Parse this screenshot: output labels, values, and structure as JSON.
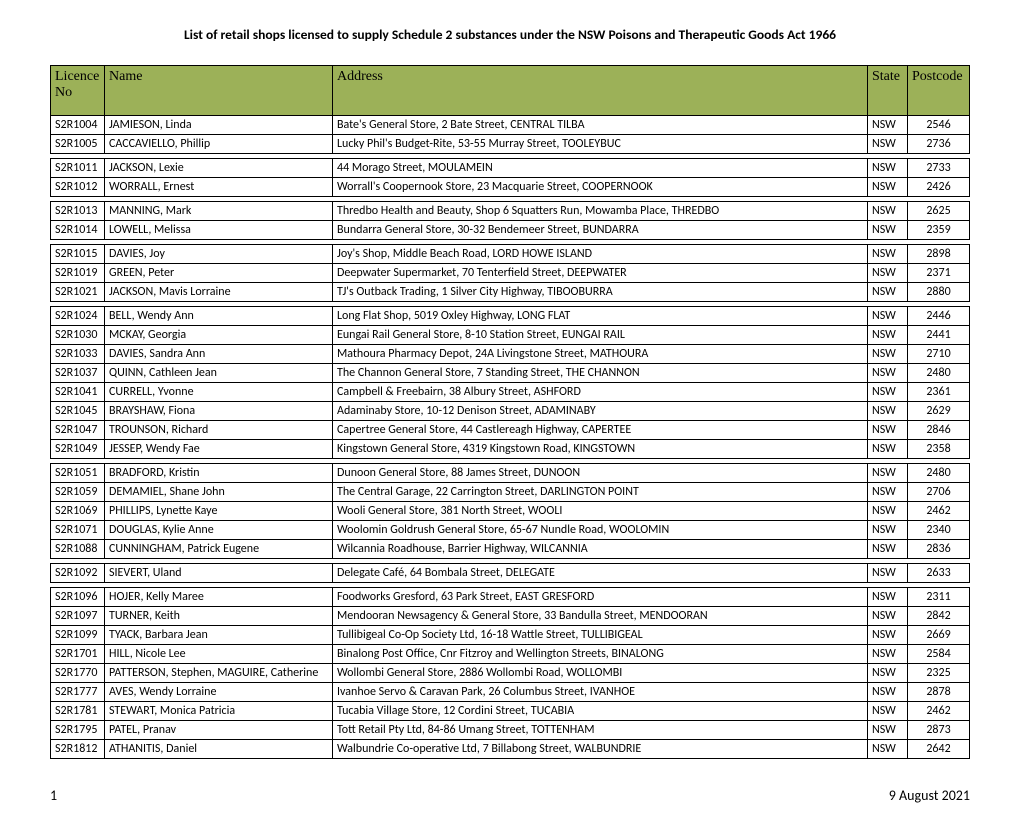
{
  "title": "List of retail shops licensed to supply Schedule 2 substances under the NSW Poisons and Therapeutic Goods Act 1966",
  "header_bg": "#9cb158",
  "columns": [
    "Licence No",
    "Name",
    "Address",
    "State",
    "Postcode"
  ],
  "footer": {
    "page": "1",
    "date": "9 August 2021"
  },
  "groups": [
    [
      [
        "S2R1004",
        "JAMIESON, Linda",
        "Bate's General Store, 2 Bate Street, CENTRAL TILBA",
        "NSW",
        "2546"
      ],
      [
        "S2R1005",
        "CACCAVIELLO, Phillip",
        "Lucky Phil's Budget-Rite, 53-55 Murray Street, TOOLEYBUC",
        "NSW",
        "2736"
      ]
    ],
    [
      [
        "S2R1011",
        "JACKSON, Lexie",
        "44  Morago Street, MOULAMEIN",
        "NSW",
        "2733"
      ],
      [
        "S2R1012",
        "WORRALL, Ernest",
        "Worrall's Coopernook Store, 23 Macquarie Street, COOPERNOOK",
        "NSW",
        "2426"
      ]
    ],
    [
      [
        "S2R1013",
        "MANNING, Mark",
        "Thredbo Health and Beauty, Shop 6 Squatters Run, Mowamba Place, THREDBO",
        "NSW",
        "2625"
      ],
      [
        "S2R1014",
        "LOWELL, Melissa",
        "Bundarra General Store, 30-32 Bendemeer Street, BUNDARRA",
        "NSW",
        "2359"
      ]
    ],
    [
      [
        "S2R1015",
        "DAVIES, Joy",
        "Joy's Shop, Middle Beach Road, LORD HOWE ISLAND",
        "NSW",
        "2898"
      ],
      [
        "S2R1019",
        "GREEN, Peter",
        "Deepwater Supermarket, 70 Tenterfield Street, DEEPWATER",
        "NSW",
        "2371"
      ],
      [
        "S2R1021",
        "JACKSON, Mavis Lorraine",
        "TJ's Outback Trading, 1 Silver City Highway, TIBOOBURRA",
        "NSW",
        "2880"
      ]
    ],
    [
      [
        "S2R1024",
        "BELL, Wendy Ann",
        "Long Flat Shop, 5019 Oxley Highway, LONG FLAT",
        "NSW",
        "2446"
      ],
      [
        "S2R1030",
        "MCKAY, Georgia",
        "Eungai Rail General Store, 8-10 Station Street, EUNGAI RAIL",
        "NSW",
        "2441"
      ],
      [
        "S2R1033",
        "DAVIES, Sandra Ann",
        "Mathoura Pharmacy Depot, 24A Livingstone Street, MATHOURA",
        "NSW",
        "2710"
      ],
      [
        "S2R1037",
        "QUINN, Cathleen Jean",
        "The Channon General Store, 7 Standing Street, THE CHANNON",
        "NSW",
        "2480"
      ],
      [
        "S2R1041",
        "CURRELL, Yvonne",
        "Campbell & Freebairn, 38 Albury Street, ASHFORD",
        "NSW",
        "2361"
      ],
      [
        "S2R1045",
        "BRAYSHAW, Fiona",
        "Adaminaby Store, 10-12 Denison Street, ADAMINABY",
        "NSW",
        "2629"
      ],
      [
        "S2R1047",
        "TROUNSON, Richard",
        "Capertree General Store, 44 Castlereagh Highway, CAPERTEE",
        "NSW",
        "2846"
      ],
      [
        "S2R1049",
        "JESSEP, Wendy Fae",
        "Kingstown General Store, 4319 Kingstown Road, KINGSTOWN",
        "NSW",
        "2358"
      ]
    ],
    [
      [
        "S2R1051",
        "BRADFORD, Kristin",
        "Dunoon General Store, 88 James Street, DUNOON",
        "NSW",
        "2480"
      ],
      [
        "S2R1059",
        "DEMAMIEL, Shane John",
        "The Central Garage, 22 Carrington Street, DARLINGTON POINT",
        "NSW",
        "2706"
      ],
      [
        "S2R1069",
        "PHILLIPS, Lynette Kaye",
        "Wooli General Store, 381 North Street, WOOLI",
        "NSW",
        "2462"
      ],
      [
        "S2R1071",
        "DOUGLAS, Kylie Anne",
        "Woolomin Goldrush General Store, 65-67 Nundle Road, WOOLOMIN",
        "NSW",
        "2340"
      ],
      [
        "S2R1088",
        "CUNNINGHAM, Patrick Eugene",
        "Wilcannia Roadhouse, Barrier Highway, WILCANNIA",
        "NSW",
        "2836"
      ]
    ],
    [
      [
        "S2R1092",
        "SIEVERT, Uland",
        "Delegate Café, 64 Bombala Street, DELEGATE",
        "NSW",
        "2633"
      ]
    ],
    [
      [
        "S2R1096",
        "HOJER, Kelly Maree",
        "Foodworks Gresford, 63 Park Street, EAST GRESFORD",
        "NSW",
        "2311"
      ],
      [
        "S2R1097",
        "TURNER, Keith",
        "Mendooran Newsagency & General Store, 33 Bandulla Street, MENDOORAN",
        "NSW",
        "2842"
      ],
      [
        "S2R1099",
        "TYACK, Barbara Jean",
        "Tullibigeal Co-Op Society Ltd, 16-18 Wattle Street, TULLIBIGEAL",
        "NSW",
        "2669"
      ],
      [
        "S2R1701",
        "HILL, Nicole Lee",
        "Binalong Post Office, Cnr Fitzroy and Wellington Streets, BINALONG",
        "NSW",
        "2584"
      ],
      [
        "S2R1770",
        "PATTERSON, Stephen, MAGUIRE, Catherine",
        "Wollombi General Store, 2886 Wollombi Road, WOLLOMBI",
        "NSW",
        "2325"
      ],
      [
        "S2R1777",
        "AVES, Wendy Lorraine",
        "Ivanhoe Servo & Caravan Park, 26 Columbus Street, IVANHOE",
        "NSW",
        "2878"
      ],
      [
        "S2R1781",
        "STEWART, Monica Patricia",
        "Tucabia Village Store, 12 Cordini Street, TUCABIA",
        "NSW",
        "2462"
      ],
      [
        "S2R1795",
        "PATEL, Pranav",
        "Tott Retail Pty Ltd, 84-86 Umang Street, TOTTENHAM",
        "NSW",
        "2873"
      ],
      [
        "S2R1812",
        "ATHANITIS, Daniel",
        "Walbundrie Co-operative Ltd, 7 Billabong Street, WALBUNDRIE",
        "NSW",
        "2642"
      ]
    ]
  ]
}
